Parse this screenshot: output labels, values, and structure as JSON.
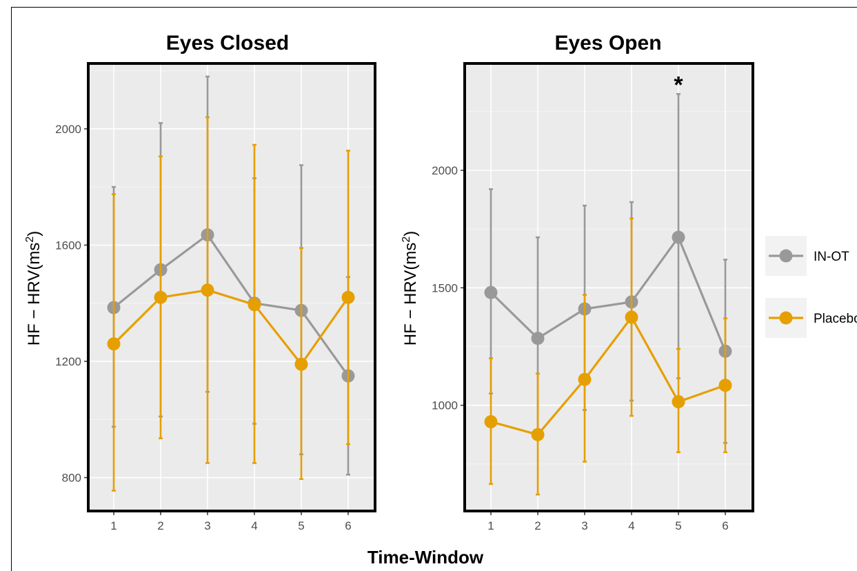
{
  "figure": {
    "shared_xlabel": "Time-Window"
  },
  "legend": {
    "items": [
      {
        "label": "IN-OT",
        "color": "#999999"
      },
      {
        "label": "Placebo",
        "color": "#E69F00"
      }
    ]
  },
  "chart_data": [
    {
      "type": "line",
      "title": "Eyes Closed",
      "xlabel": "Time-Window",
      "ylabel": "HF − HRV(ms²)",
      "x": [
        1,
        2,
        3,
        4,
        5,
        6
      ],
      "ylim": [
        685,
        2225
      ],
      "yticks": [
        800,
        1200,
        1600,
        2000
      ],
      "grid": true,
      "annotations": [],
      "series": [
        {
          "name": "IN-OT",
          "color": "#999999",
          "values": [
            1385,
            1515,
            1635,
            1400,
            1375,
            1150
          ],
          "error_low": [
            975,
            1010,
            1095,
            985,
            880,
            810
          ],
          "error_high": [
            1800,
            2020,
            2180,
            1830,
            1875,
            1490
          ]
        },
        {
          "name": "Placebo",
          "color": "#E69F00",
          "values": [
            1260,
            1420,
            1445,
            1395,
            1190,
            1420
          ],
          "error_low": [
            755,
            935,
            850,
            850,
            795,
            915
          ],
          "error_high": [
            1775,
            1905,
            2040,
            1945,
            1590,
            1925
          ]
        }
      ]
    },
    {
      "type": "line",
      "title": "Eyes Open",
      "xlabel": "Time-Window",
      "ylabel": "HF − HRV(ms²)",
      "x": [
        1,
        2,
        3,
        4,
        5,
        6
      ],
      "ylim": [
        550,
        2455
      ],
      "yticks": [
        1000,
        1500,
        2000
      ],
      "grid": true,
      "annotations": [
        {
          "x": 5,
          "text": "*"
        }
      ],
      "series": [
        {
          "name": "IN-OT",
          "color": "#999999",
          "values": [
            1480,
            1285,
            1410,
            1440,
            1715,
            1230
          ],
          "error_low": [
            1050,
            870,
            980,
            1020,
            1115,
            840
          ],
          "error_high": [
            1920,
            1715,
            1850,
            1865,
            2325,
            1620
          ]
        },
        {
          "name": "Placebo",
          "color": "#E69F00",
          "values": [
            930,
            875,
            1110,
            1375,
            1015,
            1085
          ],
          "error_low": [
            665,
            620,
            760,
            955,
            800,
            800
          ],
          "error_high": [
            1200,
            1135,
            1470,
            1795,
            1240,
            1370
          ]
        }
      ]
    }
  ]
}
